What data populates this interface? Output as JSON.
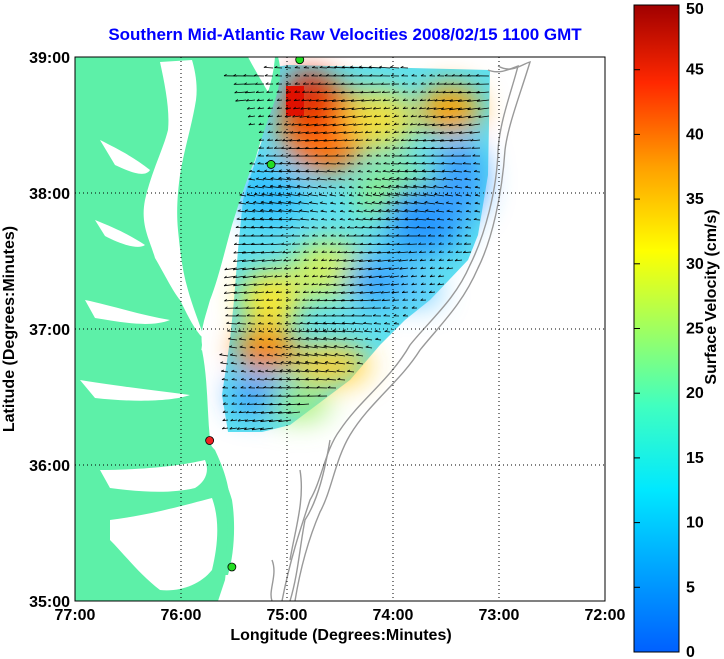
{
  "title": "Southern Mid-Atlantic Raw Velocities 2008/02/15 1100 GMT",
  "x_axis": {
    "label": "Longitude (Degrees:Minutes)",
    "ticks": [
      "77:00",
      "76:00",
      "75:00",
      "74:00",
      "73:00",
      "72:00"
    ]
  },
  "y_axis": {
    "label": "Latitude (Degrees:Minutes)",
    "ticks": [
      "39:00",
      "38:00",
      "37:00",
      "36:00",
      "35:00"
    ]
  },
  "colorbar": {
    "label": "Surface Velocity (cm/s)",
    "ticks": [
      "50",
      "45",
      "40",
      "35",
      "30",
      "25",
      "20",
      "15",
      "10",
      "5",
      "0"
    ],
    "range": [
      0,
      50
    ],
    "colormap": "jet"
  },
  "map": {
    "land_color": "#5df0a8",
    "bathymetry_color": "#909090",
    "grid": "dotted",
    "longitude_range": [
      -77,
      -72
    ],
    "latitude_range": [
      35,
      39
    ],
    "stations": [
      {
        "lon": -74.88,
        "lat": 38.98,
        "color": "#22dd22"
      },
      {
        "lon": -75.15,
        "lat": 38.21,
        "color": "#22dd22"
      },
      {
        "lon": -75.73,
        "lat": 36.18,
        "color": "#ee2222"
      },
      {
        "lon": -75.52,
        "lat": 35.25,
        "color": "#22dd22"
      }
    ]
  },
  "chart_data": {
    "type": "heatmap",
    "description_units": "cm/s",
    "velocity_hotspots": [
      {
        "lon": -74.8,
        "lat": 38.55,
        "speed": 40
      },
      {
        "lon": -73.35,
        "lat": 38.65,
        "speed": 36
      },
      {
        "lon": -75.65,
        "lat": 36.85,
        "speed": 34
      },
      {
        "lon": -74.7,
        "lat": 37.35,
        "speed": 22
      },
      {
        "lon": -73.6,
        "lat": 37.9,
        "speed": 6
      },
      {
        "lon": -75.5,
        "lat": 36.5,
        "speed": 6
      }
    ]
  }
}
